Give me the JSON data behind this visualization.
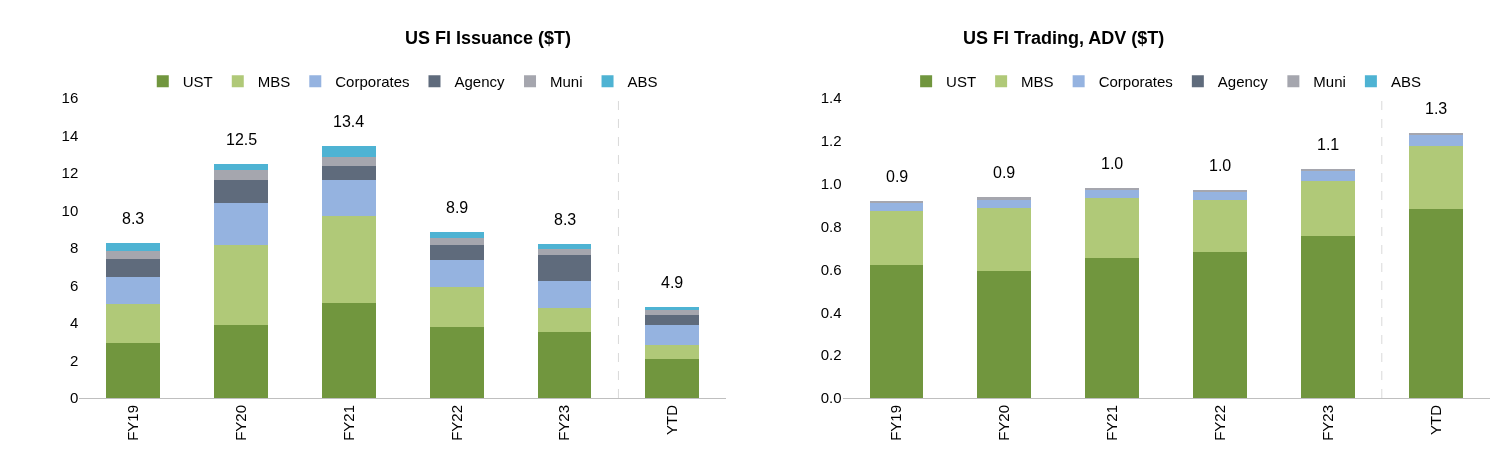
{
  "chart_data": [
    {
      "type": "bar",
      "title": "US FI Issuance ($T)",
      "stacked": true,
      "categories": [
        "FY19",
        "FY20",
        "FY21",
        "FY22",
        "FY23",
        "YTD"
      ],
      "series": [
        {
          "name": "UST",
          "color": "#71963e",
          "values": [
            2.93,
            3.87,
            5.08,
            3.77,
            3.51,
            2.1
          ]
        },
        {
          "name": "MBS",
          "color": "#b0c978",
          "values": [
            2.1,
            4.3,
            4.65,
            2.17,
            1.31,
            0.72
          ]
        },
        {
          "name": "Corporates",
          "color": "#95b3e0",
          "values": [
            1.42,
            2.24,
            1.92,
            1.4,
            1.44,
            1.05
          ]
        },
        {
          "name": "Agency",
          "color": "#5f6b7c",
          "values": [
            0.96,
            1.24,
            0.72,
            0.83,
            1.35,
            0.56
          ]
        },
        {
          "name": "Muni",
          "color": "#a5a6ae",
          "values": [
            0.44,
            0.53,
            0.46,
            0.38,
            0.35,
            0.27
          ]
        },
        {
          "name": "ABS",
          "color": "#4eb3d3",
          "values": [
            0.44,
            0.28,
            0.59,
            0.3,
            0.26,
            0.17
          ]
        }
      ],
      "totals": [
        "8.3",
        "12.5",
        "13.4",
        "8.9",
        "8.3",
        "4.9"
      ],
      "ylim": [
        0,
        16
      ],
      "yticks": [
        0,
        2,
        4,
        6,
        8,
        10,
        12,
        14,
        16
      ],
      "legend": "top"
    },
    {
      "type": "bar",
      "title": "US FI Trading, ADV ($T)",
      "stacked": true,
      "categories": [
        "FY19",
        "FY20",
        "FY21",
        "FY22",
        "FY23",
        "YTD"
      ],
      "series": [
        {
          "name": "UST",
          "color": "#71963e",
          "values": [
            0.623,
            0.593,
            0.652,
            0.682,
            0.758,
            0.88
          ]
        },
        {
          "name": "MBS",
          "color": "#b0c978",
          "values": [
            0.248,
            0.295,
            0.283,
            0.24,
            0.256,
            0.295
          ]
        },
        {
          "name": "Corporates",
          "color": "#95b3e0",
          "values": [
            0.037,
            0.038,
            0.036,
            0.04,
            0.044,
            0.053
          ]
        },
        {
          "name": "Agency",
          "color": "#5f6b7c",
          "values": [
            null,
            null,
            null,
            null,
            null,
            null
          ]
        },
        {
          "name": "Muni",
          "color": "#a5a6ae",
          "values": [
            0.01,
            0.01,
            0.01,
            0.01,
            0.01,
            0.01
          ]
        },
        {
          "name": "ABS",
          "color": "#4eb3d3",
          "values": [
            null,
            null,
            null,
            null,
            null,
            null
          ]
        }
      ],
      "totals": [
        "0.9",
        "0.9",
        "1.0",
        "1.0",
        "1.1",
        "1.3"
      ],
      "ylim": [
        0,
        1.4
      ],
      "yticks": [
        {
          "value": 0,
          "label": "0.0"
        },
        0.2,
        0.4,
        0.6,
        0.8,
        {
          "value": 1,
          "label": "1.0"
        },
        1.2,
        1.4
      ],
      "legend": "top"
    }
  ]
}
